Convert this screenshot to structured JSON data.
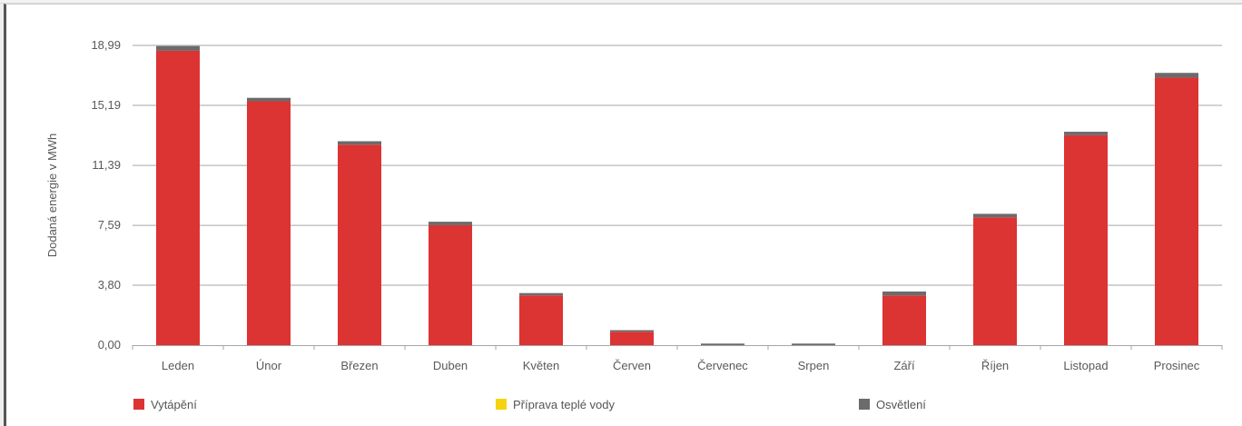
{
  "chart_data": {
    "type": "bar",
    "stacked": true,
    "ylabel": "Dodaná energie v MWh",
    "xlabel": "",
    "ylim": [
      0,
      18.99
    ],
    "yticks": [
      "0,00",
      "3,80",
      "7,59",
      "11,39",
      "15,19",
      "18,99"
    ],
    "ytick_values": [
      0,
      3.8,
      7.59,
      11.39,
      15.19,
      18.99
    ],
    "grid": true,
    "legend_position": "bottom",
    "categories": [
      "Leden",
      "Únor",
      "Březen",
      "Duben",
      "Květen",
      "Červen",
      "Červenec",
      "Srpen",
      "Září",
      "Říjen",
      "Listopad",
      "Prosinec"
    ],
    "series": [
      {
        "name": "Vytápění",
        "color": "#dc3333",
        "values": [
          18.65,
          15.45,
          12.7,
          7.6,
          3.15,
          0.85,
          0.0,
          0.0,
          3.15,
          8.1,
          13.3,
          16.95
        ]
      },
      {
        "name": "Příprava teplé vody",
        "color": "#f5d40f",
        "values": [
          0,
          0,
          0,
          0,
          0,
          0,
          0,
          0,
          0,
          0,
          0,
          0
        ]
      },
      {
        "name": "Osvětlení",
        "color": "#6b6b6b",
        "values": [
          0.3,
          0.22,
          0.22,
          0.22,
          0.15,
          0.1,
          0.1,
          0.1,
          0.25,
          0.22,
          0.22,
          0.3
        ]
      }
    ]
  },
  "colors": {
    "gridline": "#a6a6a6",
    "axis": "#a6a6a6",
    "text": "#595959"
  }
}
